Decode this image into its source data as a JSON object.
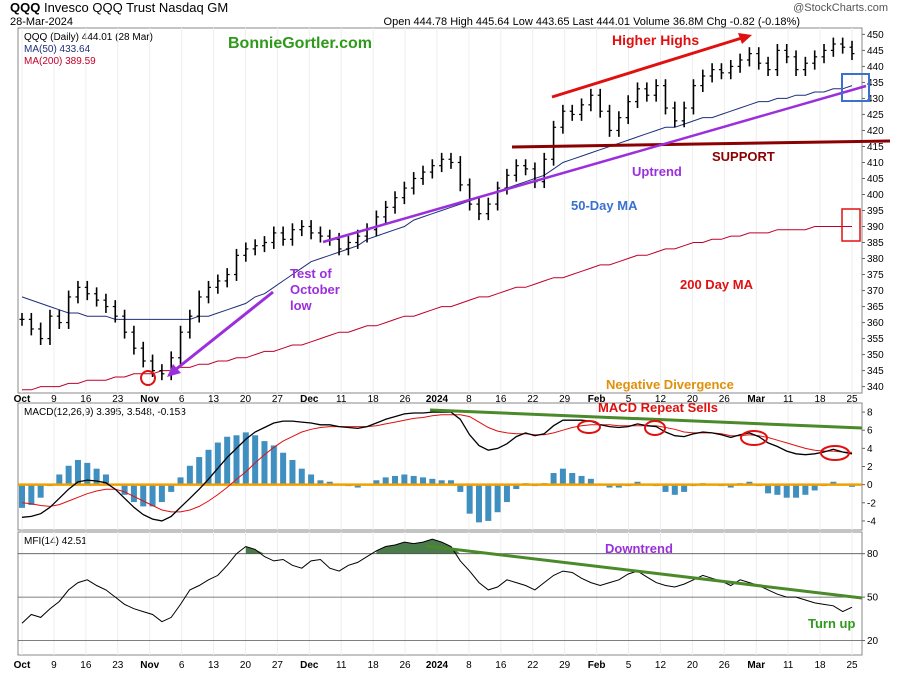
{
  "header": {
    "symbol": "QQQ",
    "name": "Invesco QQQ Trust",
    "exchange": "Nasdaq GM",
    "date": "28-Mar-2024",
    "stats": "Open 444.78  High 445.64  Low 443.65  Last 444.01  Volume 36.8M  Chg -0.82 (-0.18%)",
    "change_color": "#c00000",
    "watermark": "@StockCharts.com"
  },
  "colors": {
    "price": "#000000",
    "ma50": "#1f2f7a",
    "ma200": "#c0002a",
    "macd_signal": "#e01010",
    "histogram": "#3f8fc0",
    "zero_line": "#f0a000",
    "trendline_green": "#4a8a2a",
    "annotation_red": "#e01010",
    "annotation_purple": "#9b2fdc",
    "annotation_darkred": "#8b0000",
    "annotation_green": "#2f9a1a",
    "annotation_orange": "#e0900a",
    "annotation_blue": "#3a70d0"
  },
  "chart_data": [
    {
      "type": "line",
      "title": "QQQ (Daily) 444.01 (28 Mar)",
      "ylim": [
        338,
        452
      ],
      "yticks": [
        340,
        345,
        350,
        355,
        360,
        365,
        370,
        375,
        380,
        385,
        390,
        395,
        400,
        405,
        410,
        415,
        420,
        425,
        430,
        435,
        440,
        445,
        450
      ],
      "legend": [
        "QQQ (Daily) 444.01 (28 Mar)",
        "MA(50) 433.64",
        "MA(200) 389.59"
      ],
      "series": [
        {
          "name": "QQQ (Daily) 444.01 (28 Mar)",
          "values": [
            361,
            358,
            355,
            362,
            360,
            368,
            371,
            369,
            367,
            365,
            362,
            357,
            352,
            348,
            345,
            344,
            349,
            357,
            362,
            368,
            371,
            373,
            375,
            381,
            383,
            384,
            385,
            388,
            386,
            389,
            390,
            388,
            387,
            386,
            383,
            385,
            387,
            389,
            393,
            396,
            399,
            402,
            405,
            407,
            409,
            411,
            410,
            403,
            397,
            394,
            397,
            402,
            406,
            409,
            408,
            404,
            411,
            421,
            426,
            425,
            428,
            431,
            426,
            420,
            424,
            429,
            433,
            431,
            434,
            427,
            423,
            427,
            434,
            437,
            439,
            438,
            440,
            442,
            444,
            441,
            439,
            445,
            443,
            439,
            441,
            443,
            445,
            447,
            446,
            444
          ]
        },
        {
          "name": "MA(50) 433.64",
          "values": [
            368,
            367,
            366,
            365,
            364,
            363,
            363,
            362,
            362,
            362,
            361,
            361,
            361,
            361,
            361,
            361,
            361,
            361,
            361,
            362,
            362,
            363,
            364,
            365,
            366,
            368,
            369,
            371,
            373,
            375,
            377,
            379,
            380,
            381,
            382,
            383,
            384,
            386,
            387,
            388,
            389,
            390,
            392,
            393,
            394,
            395,
            396,
            397,
            398,
            399,
            400,
            401,
            402,
            403,
            404,
            405,
            406,
            408,
            410,
            411,
            412,
            413,
            414,
            415,
            416,
            417,
            418,
            419,
            420,
            421,
            421,
            422,
            423,
            424,
            424,
            425,
            426,
            427,
            428,
            429,
            429,
            430,
            430,
            431,
            431,
            432,
            432,
            433,
            433,
            434
          ]
        },
        {
          "name": "MA(200) 389.59",
          "values": [
            339,
            339,
            340,
            340,
            340,
            341,
            341,
            342,
            342,
            342,
            343,
            343,
            344,
            344,
            344,
            345,
            345,
            346,
            346,
            347,
            347,
            348,
            348,
            349,
            349,
            350,
            351,
            351,
            352,
            353,
            353,
            354,
            355,
            356,
            357,
            357,
            358,
            359,
            359,
            360,
            361,
            362,
            362,
            363,
            364,
            365,
            365,
            366,
            367,
            368,
            368,
            369,
            370,
            371,
            371,
            372,
            373,
            374,
            374,
            375,
            376,
            377,
            378,
            378,
            379,
            380,
            381,
            381,
            382,
            383,
            383,
            384,
            385,
            385,
            386,
            386,
            387,
            387,
            388,
            388,
            388,
            389,
            389,
            389,
            389,
            390,
            390,
            390,
            390,
            390
          ]
        }
      ],
      "x_labels": [
        "Oct",
        "9",
        "16",
        "23",
        "Nov",
        "6",
        "13",
        "20",
        "27",
        "Dec",
        "11",
        "18",
        "26",
        "2024",
        "8",
        "16",
        "22",
        "29",
        "Feb",
        "5",
        "12",
        "20",
        "26",
        "Mar",
        "11",
        "18",
        "25"
      ]
    },
    {
      "type": "line",
      "title": "MACD(12,26,9) 3.395, 3.548, -0.153",
      "ylim": [
        -5,
        9
      ],
      "yticks": [
        -4,
        -2,
        0,
        2,
        4,
        6,
        8
      ],
      "legend": [
        "MACD(12,26,9) 3.395, 3.548, -0.153"
      ],
      "series": [
        {
          "name": "MACD",
          "values": [
            -3.6,
            -3.5,
            -3.2,
            -2.5,
            -1.5,
            -0.5,
            0.3,
            0.5,
            0.4,
            0.2,
            -0.5,
            -1.5,
            -2.5,
            -3.3,
            -3.8,
            -4.0,
            -3.5,
            -2.5,
            -1.5,
            -0.5,
            0.6,
            1.8,
            3.0,
            4.0,
            5.0,
            5.8,
            6.3,
            6.8,
            7.0,
            7.0,
            6.9,
            6.8,
            6.6,
            6.6,
            6.4,
            6.3,
            6.2,
            6.4,
            6.8,
            7.2,
            7.5,
            7.8,
            7.9,
            7.9,
            8.0,
            8.0,
            8.0,
            7.2,
            5.5,
            4.3,
            3.8,
            4.0,
            4.5,
            5.3,
            5.7,
            5.4,
            5.6,
            6.5,
            7.1,
            7.1,
            7.1,
            7.0,
            6.6,
            6.4,
            6.3,
            6.4,
            6.7,
            6.5,
            6.4,
            5.8,
            5.4,
            5.3,
            5.6,
            5.8,
            5.7,
            5.5,
            5.2,
            5.5,
            5.7,
            5.3,
            4.6,
            4.2,
            3.7,
            3.4,
            3.3,
            3.4,
            3.6,
            3.9,
            3.6,
            3.4
          ]
        },
        {
          "name": "Signal",
          "values": [
            -2.0,
            -2.1,
            -2.3,
            -2.4,
            -2.2,
            -1.8,
            -1.4,
            -1.0,
            -0.7,
            -0.5,
            -0.5,
            -0.8,
            -1.3,
            -1.8,
            -2.3,
            -2.8,
            -3.0,
            -3.0,
            -2.8,
            -2.4,
            -1.8,
            -1.1,
            -0.3,
            0.6,
            1.4,
            2.4,
            3.3,
            4.1,
            4.8,
            5.3,
            5.8,
            6.1,
            6.3,
            6.4,
            6.4,
            6.4,
            6.4,
            6.4,
            6.5,
            6.7,
            6.9,
            7.1,
            7.3,
            7.4,
            7.6,
            7.7,
            7.7,
            7.7,
            7.5,
            6.9,
            6.3,
            5.9,
            5.7,
            5.6,
            5.6,
            5.5,
            5.5,
            5.7,
            6.0,
            6.3,
            6.5,
            6.6,
            6.6,
            6.6,
            6.5,
            6.5,
            6.5,
            6.5,
            6.5,
            6.3,
            6.1,
            5.8,
            5.7,
            5.7,
            5.7,
            5.6,
            5.4,
            5.4,
            5.5,
            5.4,
            5.2,
            4.9,
            4.6,
            4.3,
            4.0,
            3.8,
            3.7,
            3.7,
            3.6,
            3.55
          ]
        }
      ]
    },
    {
      "type": "line",
      "title": "MFI(14) 42.51",
      "ylim": [
        10,
        95
      ],
      "yticks": [
        20,
        50,
        80
      ],
      "legend": [
        "MFI(14) 42.51"
      ],
      "series": [
        {
          "name": "MFI(14) 42.51",
          "values": [
            32,
            38,
            36,
            42,
            47,
            55,
            60,
            62,
            58,
            55,
            50,
            45,
            42,
            40,
            38,
            33,
            36,
            45,
            55,
            58,
            62,
            65,
            72,
            80,
            85,
            83,
            78,
            75,
            76,
            72,
            70,
            75,
            76,
            70,
            68,
            72,
            74,
            78,
            82,
            85,
            86,
            88,
            87,
            88,
            90,
            88,
            85,
            75,
            68,
            60,
            55,
            57,
            62,
            60,
            58,
            55,
            60,
            65,
            68,
            67,
            63,
            60,
            58,
            60,
            62,
            66,
            68,
            64,
            60,
            58,
            57,
            59,
            62,
            65,
            63,
            61,
            58,
            62,
            60,
            58,
            55,
            52,
            50,
            50,
            48,
            46,
            45,
            44,
            40,
            43
          ]
        }
      ],
      "fill_above": 80
    }
  ],
  "annotations": {
    "site": "BonnieGortler.com",
    "higher_highs": "Higher Highs",
    "support": "SUPPORT",
    "uptrend": "Uptrend",
    "ma50_label": "50-Day MA",
    "ma200_label": "200 Day MA",
    "test_line1": "Test of",
    "test_line2": "October",
    "test_line3": "low",
    "neg_div": "Negative Divergence",
    "macd_sells": "MACD Repeat Sells",
    "downtrend": "Downtrend",
    "turn_up": "Turn up"
  }
}
